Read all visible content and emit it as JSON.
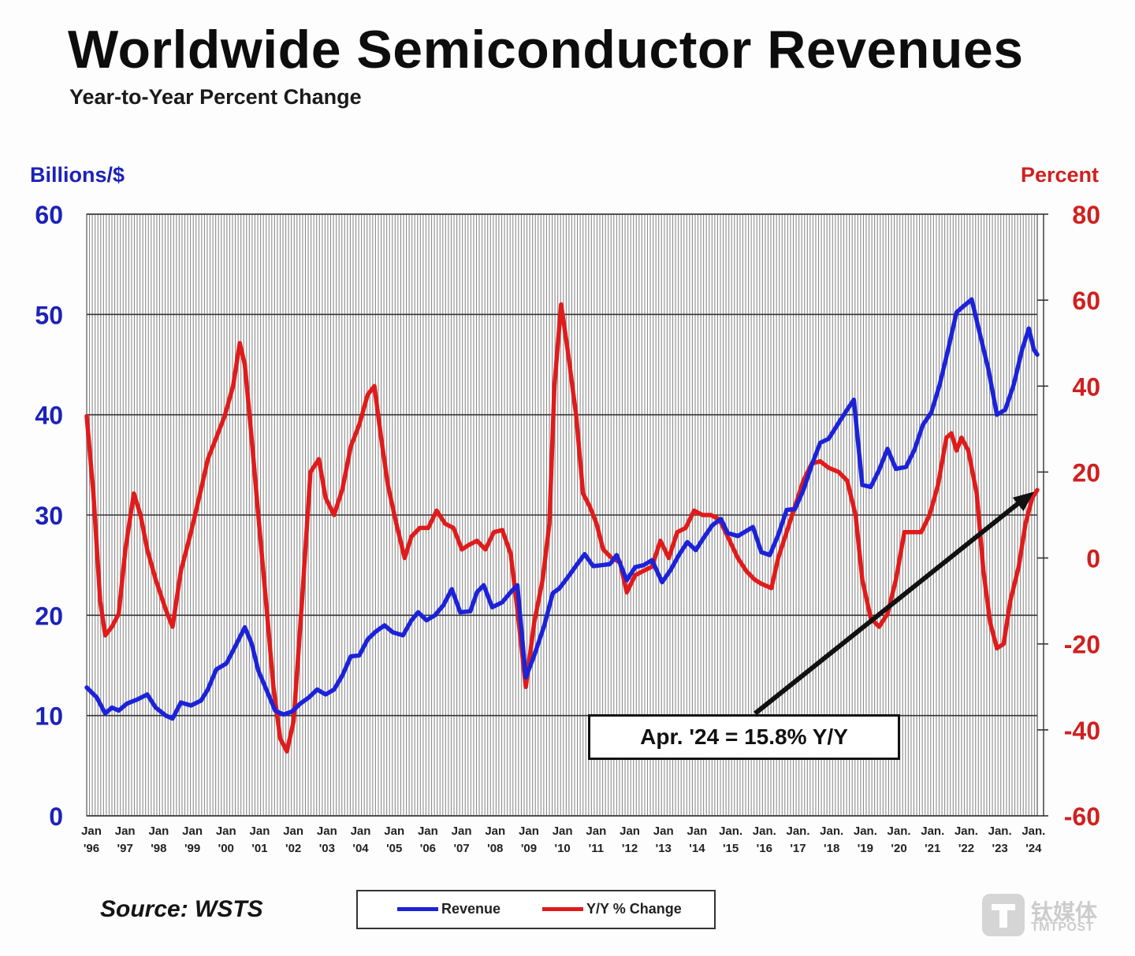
{
  "chart_data": {
    "type": "line",
    "title": "Worldwide Semiconductor Revenues",
    "subtitle": "Year-to-Year Percent Change",
    "y_left_label": "Billions/$",
    "y_right_label": "Percent",
    "y_left_lim": [
      0,
      60
    ],
    "y_left_ticks": [
      "0",
      "10",
      "20",
      "30",
      "40",
      "50",
      "60"
    ],
    "y_right_lim": [
      -60,
      80
    ],
    "y_right_ticks": [
      "-60",
      "-40",
      "-20",
      "0",
      "20",
      "40",
      "60",
      "80"
    ],
    "x_lim": [
      1996.0,
      2024.25
    ],
    "x_tick_labels": [
      {
        "x": 1996,
        "month": "Jan",
        "year": "'96"
      },
      {
        "x": 1997,
        "month": "Jan",
        "year": "'97"
      },
      {
        "x": 1998,
        "month": "Jan",
        "year": "'98"
      },
      {
        "x": 1999,
        "month": "Jan",
        "year": "'99"
      },
      {
        "x": 2000,
        "month": "Jan",
        "year": "'00"
      },
      {
        "x": 2001,
        "month": "Jan",
        "year": "'01"
      },
      {
        "x": 2002,
        "month": "Jan",
        "year": "'02"
      },
      {
        "x": 2003,
        "month": "Jan",
        "year": "'03"
      },
      {
        "x": 2004,
        "month": "Jan",
        "year": "'04"
      },
      {
        "x": 2005,
        "month": "Jan",
        "year": "'05"
      },
      {
        "x": 2006,
        "month": "Jan",
        "year": "'06"
      },
      {
        "x": 2007,
        "month": "Jan",
        "year": "'07"
      },
      {
        "x": 2008,
        "month": "Jan",
        "year": "'08"
      },
      {
        "x": 2009,
        "month": "Jan",
        "year": "'09"
      },
      {
        "x": 2010,
        "month": "Jan",
        "year": "'10"
      },
      {
        "x": 2011,
        "month": "Jan",
        "year": "'11"
      },
      {
        "x": 2012,
        "month": "Jan",
        "year": "'12"
      },
      {
        "x": 2013,
        "month": "Jan",
        "year": "'13"
      },
      {
        "x": 2014,
        "month": "Jan",
        "year": "'14"
      },
      {
        "x": 2015,
        "month": "Jan.",
        "year": "'15"
      },
      {
        "x": 2016,
        "month": "Jan.",
        "year": "'16"
      },
      {
        "x": 2017,
        "month": "Jan.",
        "year": "'17"
      },
      {
        "x": 2018,
        "month": "Jan.",
        "year": "'18"
      },
      {
        "x": 2019,
        "month": "Jan.",
        "year": "'19"
      },
      {
        "x": 2020,
        "month": "Jan.",
        "year": "'20"
      },
      {
        "x": 2021,
        "month": "Jan.",
        "year": "'21"
      },
      {
        "x": 2022,
        "month": "Jan.",
        "year": "'22"
      },
      {
        "x": 2023,
        "month": "Jan.",
        "year": "'23"
      },
      {
        "x": 2024,
        "month": "Jan.",
        "year": "'24"
      }
    ],
    "grid": true,
    "legend_placement": "bottom-center",
    "series": [
      {
        "name": "Revenue",
        "axis": "left",
        "color": "#1c22d8",
        "points": [
          [
            1996.0,
            12.8
          ],
          [
            1996.3,
            11.8
          ],
          [
            1996.55,
            10.2
          ],
          [
            1996.75,
            10.8
          ],
          [
            1996.95,
            10.5
          ],
          [
            1997.2,
            11.2
          ],
          [
            1997.5,
            11.6
          ],
          [
            1997.8,
            12.1
          ],
          [
            1998.05,
            10.8
          ],
          [
            1998.35,
            10.0
          ],
          [
            1998.55,
            9.7
          ],
          [
            1998.8,
            11.3
          ],
          [
            1999.1,
            11.0
          ],
          [
            1999.4,
            11.5
          ],
          [
            1999.6,
            12.6
          ],
          [
            1999.85,
            14.6
          ],
          [
            2000.15,
            15.2
          ],
          [
            2000.4,
            16.8
          ],
          [
            2000.7,
            18.8
          ],
          [
            2000.9,
            17.2
          ],
          [
            2001.1,
            14.5
          ],
          [
            2001.35,
            12.5
          ],
          [
            2001.6,
            10.5
          ],
          [
            2001.85,
            10.1
          ],
          [
            2002.1,
            10.4
          ],
          [
            2002.35,
            11.2
          ],
          [
            2002.6,
            11.8
          ],
          [
            2002.85,
            12.6
          ],
          [
            2003.1,
            12.1
          ],
          [
            2003.35,
            12.6
          ],
          [
            2003.6,
            14.0
          ],
          [
            2003.85,
            15.9
          ],
          [
            2004.1,
            16.0
          ],
          [
            2004.35,
            17.6
          ],
          [
            2004.6,
            18.4
          ],
          [
            2004.85,
            19.0
          ],
          [
            2005.1,
            18.3
          ],
          [
            2005.4,
            18.0
          ],
          [
            2005.65,
            19.5
          ],
          [
            2005.85,
            20.3
          ],
          [
            2006.1,
            19.5
          ],
          [
            2006.35,
            20.0
          ],
          [
            2006.6,
            21.0
          ],
          [
            2006.85,
            22.6
          ],
          [
            2007.1,
            20.3
          ],
          [
            2007.4,
            20.4
          ],
          [
            2007.6,
            22.3
          ],
          [
            2007.8,
            23.0
          ],
          [
            2008.05,
            20.8
          ],
          [
            2008.35,
            21.3
          ],
          [
            2008.6,
            22.3
          ],
          [
            2008.8,
            23.0
          ],
          [
            2009.05,
            13.8
          ],
          [
            2009.3,
            16.0
          ],
          [
            2009.6,
            19.0
          ],
          [
            2009.85,
            22.2
          ],
          [
            2010.05,
            22.7
          ],
          [
            2010.3,
            23.8
          ],
          [
            2010.6,
            25.2
          ],
          [
            2010.8,
            26.1
          ],
          [
            2011.05,
            24.9
          ],
          [
            2011.3,
            25.0
          ],
          [
            2011.55,
            25.1
          ],
          [
            2011.75,
            26.0
          ],
          [
            2012.05,
            23.5
          ],
          [
            2012.3,
            24.8
          ],
          [
            2012.55,
            25.0
          ],
          [
            2012.8,
            25.5
          ],
          [
            2013.1,
            23.3
          ],
          [
            2013.35,
            24.5
          ],
          [
            2013.6,
            26.0
          ],
          [
            2013.85,
            27.3
          ],
          [
            2014.1,
            26.5
          ],
          [
            2014.35,
            27.8
          ],
          [
            2014.6,
            29.0
          ],
          [
            2014.85,
            29.6
          ],
          [
            2015.05,
            28.2
          ],
          [
            2015.35,
            27.9
          ],
          [
            2015.6,
            28.4
          ],
          [
            2015.8,
            28.8
          ],
          [
            2016.05,
            26.3
          ],
          [
            2016.3,
            26.0
          ],
          [
            2016.55,
            28.0
          ],
          [
            2016.8,
            30.5
          ],
          [
            2017.05,
            30.6
          ],
          [
            2017.3,
            32.5
          ],
          [
            2017.55,
            35.0
          ],
          [
            2017.8,
            37.2
          ],
          [
            2018.05,
            37.6
          ],
          [
            2018.35,
            39.2
          ],
          [
            2018.6,
            40.5
          ],
          [
            2018.8,
            41.5
          ],
          [
            2019.05,
            33.0
          ],
          [
            2019.3,
            32.8
          ],
          [
            2019.55,
            34.5
          ],
          [
            2019.8,
            36.6
          ],
          [
            2020.05,
            34.6
          ],
          [
            2020.35,
            34.8
          ],
          [
            2020.6,
            36.5
          ],
          [
            2020.85,
            39.0
          ],
          [
            2021.1,
            40.2
          ],
          [
            2021.35,
            43.0
          ],
          [
            2021.6,
            46.5
          ],
          [
            2021.85,
            50.2
          ],
          [
            2022.05,
            50.8
          ],
          [
            2022.3,
            51.5
          ],
          [
            2022.55,
            48.0
          ],
          [
            2022.8,
            44.5
          ],
          [
            2023.05,
            40.0
          ],
          [
            2023.3,
            40.5
          ],
          [
            2023.55,
            43.0
          ],
          [
            2023.8,
            46.5
          ],
          [
            2024.0,
            48.6
          ],
          [
            2024.15,
            46.5
          ],
          [
            2024.25,
            46.0
          ]
        ]
      },
      {
        "name": "Y/Y % Change",
        "axis": "right",
        "color": "#e01b1b",
        "points": [
          [
            1996.0,
            33.0
          ],
          [
            1996.2,
            15.0
          ],
          [
            1996.4,
            -10.0
          ],
          [
            1996.55,
            -18.0
          ],
          [
            1996.75,
            -16.0
          ],
          [
            1996.95,
            -13.0
          ],
          [
            1997.15,
            2.0
          ],
          [
            1997.4,
            15.0
          ],
          [
            1997.6,
            10.0
          ],
          [
            1997.8,
            2.0
          ],
          [
            1998.05,
            -5.0
          ],
          [
            1998.35,
            -12.0
          ],
          [
            1998.55,
            -16.0
          ],
          [
            1998.8,
            -3.0
          ],
          [
            1999.1,
            6.0
          ],
          [
            1999.4,
            16.0
          ],
          [
            1999.6,
            23.0
          ],
          [
            1999.85,
            28.0
          ],
          [
            2000.1,
            33.0
          ],
          [
            2000.35,
            40.0
          ],
          [
            2000.55,
            50.0
          ],
          [
            2000.7,
            45.0
          ],
          [
            2000.9,
            28.0
          ],
          [
            2001.1,
            10.0
          ],
          [
            2001.35,
            -12.0
          ],
          [
            2001.55,
            -30.0
          ],
          [
            2001.75,
            -42.0
          ],
          [
            2001.95,
            -45.0
          ],
          [
            2002.15,
            -38.0
          ],
          [
            2002.4,
            -10.0
          ],
          [
            2002.65,
            20.0
          ],
          [
            2002.9,
            23.0
          ],
          [
            2003.1,
            14.0
          ],
          [
            2003.35,
            10.0
          ],
          [
            2003.6,
            16.0
          ],
          [
            2003.85,
            26.0
          ],
          [
            2004.1,
            31.0
          ],
          [
            2004.35,
            38.0
          ],
          [
            2004.55,
            40.0
          ],
          [
            2004.75,
            28.0
          ],
          [
            2004.95,
            17.0
          ],
          [
            2005.2,
            8.0
          ],
          [
            2005.45,
            0.0
          ],
          [
            2005.65,
            5.0
          ],
          [
            2005.9,
            7.0
          ],
          [
            2006.15,
            7.0
          ],
          [
            2006.4,
            11.0
          ],
          [
            2006.65,
            8.0
          ],
          [
            2006.9,
            7.0
          ],
          [
            2007.15,
            2.0
          ],
          [
            2007.35,
            3.0
          ],
          [
            2007.6,
            4.0
          ],
          [
            2007.85,
            2.0
          ],
          [
            2008.1,
            6.0
          ],
          [
            2008.35,
            6.5
          ],
          [
            2008.6,
            1.0
          ],
          [
            2008.8,
            -12.0
          ],
          [
            2009.05,
            -30.0
          ],
          [
            2009.3,
            -15.0
          ],
          [
            2009.55,
            -5.0
          ],
          [
            2009.75,
            8.0
          ],
          [
            2009.9,
            40.0
          ],
          [
            2010.1,
            59.0
          ],
          [
            2010.3,
            48.0
          ],
          [
            2010.55,
            33.0
          ],
          [
            2010.75,
            15.0
          ],
          [
            2010.95,
            12.0
          ],
          [
            2011.15,
            8.0
          ],
          [
            2011.35,
            2.0
          ],
          [
            2011.6,
            0.0
          ],
          [
            2011.85,
            -1.0
          ],
          [
            2012.05,
            -8.0
          ],
          [
            2012.3,
            -4.0
          ],
          [
            2012.55,
            -3.0
          ],
          [
            2012.8,
            -2.0
          ],
          [
            2013.05,
            4.0
          ],
          [
            2013.3,
            0.0
          ],
          [
            2013.55,
            6.0
          ],
          [
            2013.8,
            7.0
          ],
          [
            2014.05,
            11.0
          ],
          [
            2014.3,
            10.0
          ],
          [
            2014.55,
            10.0
          ],
          [
            2014.8,
            9.0
          ],
          [
            2015.05,
            5.0
          ],
          [
            2015.35,
            0.0
          ],
          [
            2015.6,
            -3.0
          ],
          [
            2015.85,
            -5.0
          ],
          [
            2016.05,
            -6.0
          ],
          [
            2016.35,
            -7.0
          ],
          [
            2016.55,
            0.0
          ],
          [
            2016.8,
            6.0
          ],
          [
            2017.05,
            12.0
          ],
          [
            2017.3,
            18.0
          ],
          [
            2017.55,
            22.0
          ],
          [
            2017.8,
            22.5
          ],
          [
            2018.05,
            21.0
          ],
          [
            2018.35,
            20.0
          ],
          [
            2018.6,
            18.0
          ],
          [
            2018.85,
            10.0
          ],
          [
            2019.05,
            -5.0
          ],
          [
            2019.3,
            -14.0
          ],
          [
            2019.55,
            -16.0
          ],
          [
            2019.8,
            -13.0
          ],
          [
            2020.05,
            -5.0
          ],
          [
            2020.3,
            6.0
          ],
          [
            2020.55,
            6.0
          ],
          [
            2020.8,
            6.0
          ],
          [
            2021.05,
            10.0
          ],
          [
            2021.3,
            17.0
          ],
          [
            2021.55,
            28.0
          ],
          [
            2021.7,
            29.0
          ],
          [
            2021.85,
            25.0
          ],
          [
            2022.0,
            28.0
          ],
          [
            2022.2,
            25.0
          ],
          [
            2022.45,
            15.0
          ],
          [
            2022.65,
            -3.0
          ],
          [
            2022.85,
            -15.0
          ],
          [
            2023.05,
            -21.0
          ],
          [
            2023.25,
            -20.0
          ],
          [
            2023.45,
            -10.0
          ],
          [
            2023.7,
            -2.0
          ],
          [
            2023.9,
            8.0
          ],
          [
            2024.1,
            14.0
          ],
          [
            2024.25,
            15.8
          ]
        ]
      }
    ],
    "annotation": {
      "text": "Apr. '24 = 15.8% Y/Y",
      "arrow_to": [
        2024.25,
        15.8
      ],
      "arrow_axis": "right"
    },
    "source": "Source: WSTS",
    "legend": [
      {
        "label": "Revenue",
        "color": "#1c22d8"
      },
      {
        "label": "Y/Y % Change",
        "color": "#e01b1b"
      }
    ]
  },
  "watermark": {
    "cn": "钛媒体",
    "en": "TMTPOST"
  }
}
